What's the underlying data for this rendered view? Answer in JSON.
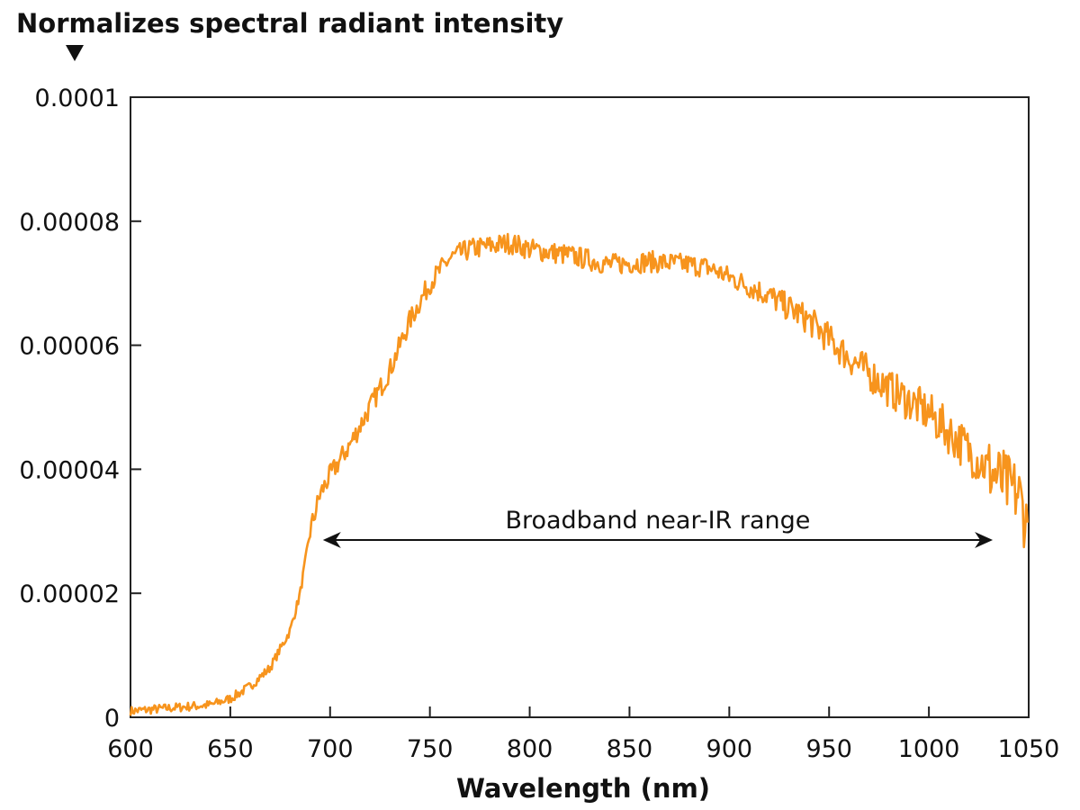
{
  "chart_data": {
    "type": "line",
    "title": "Normalizes spectral radiant intensity",
    "xlabel": "Wavelength (nm)",
    "ylabel": "",
    "xlim": [
      600,
      1050
    ],
    "ylim": [
      0,
      0.0001
    ],
    "x_ticks": [
      600,
      650,
      700,
      750,
      800,
      850,
      900,
      950,
      1000,
      1050
    ],
    "x_tick_labels": [
      "600",
      "650",
      "700",
      "750",
      "800",
      "850",
      "900",
      "950",
      "1000",
      "1050"
    ],
    "y_ticks": [
      0,
      2e-05,
      4e-05,
      6e-05,
      8e-05,
      0.0001
    ],
    "y_tick_labels": [
      "0",
      "0.00002",
      "0.00004",
      "0.00006",
      "0.00008",
      "0.0001"
    ],
    "grid": false,
    "series": [
      {
        "color": "#F7941D",
        "x": [
          600,
          620,
          640,
          650,
          660,
          670,
          680,
          685,
          690,
          695,
          700,
          710,
          720,
          730,
          740,
          750,
          760,
          770,
          780,
          790,
          800,
          820,
          840,
          860,
          880,
          890,
          900,
          920,
          940,
          960,
          980,
          1000,
          1020,
          1030,
          1040,
          1045,
          1050
        ],
        "y": [
          1e-06,
          1.5e-06,
          2e-06,
          3e-06,
          5e-06,
          8e-06,
          1.4e-05,
          2e-05,
          3e-05,
          3.6e-05,
          3.9e-05,
          4.4e-05,
          5e-05,
          5.6e-05,
          6.4e-05,
          7e-05,
          7.4e-05,
          7.55e-05,
          7.6e-05,
          7.65e-05,
          7.55e-05,
          7.45e-05,
          7.3e-05,
          7.35e-05,
          7.3e-05,
          7.25e-05,
          7.1e-05,
          6.8e-05,
          6.4e-05,
          5.8e-05,
          5.3e-05,
          4.9e-05,
          4.3e-05,
          4e-05,
          3.7e-05,
          3.6e-05,
          3e-05
        ]
      }
    ],
    "annotations": [
      {
        "text": "Broadband near-IR range",
        "x_range": [
          700,
          1032
        ],
        "y": 2.86e-05,
        "style": "double-arrow"
      }
    ],
    "axis_marker": "down-triangle"
  }
}
